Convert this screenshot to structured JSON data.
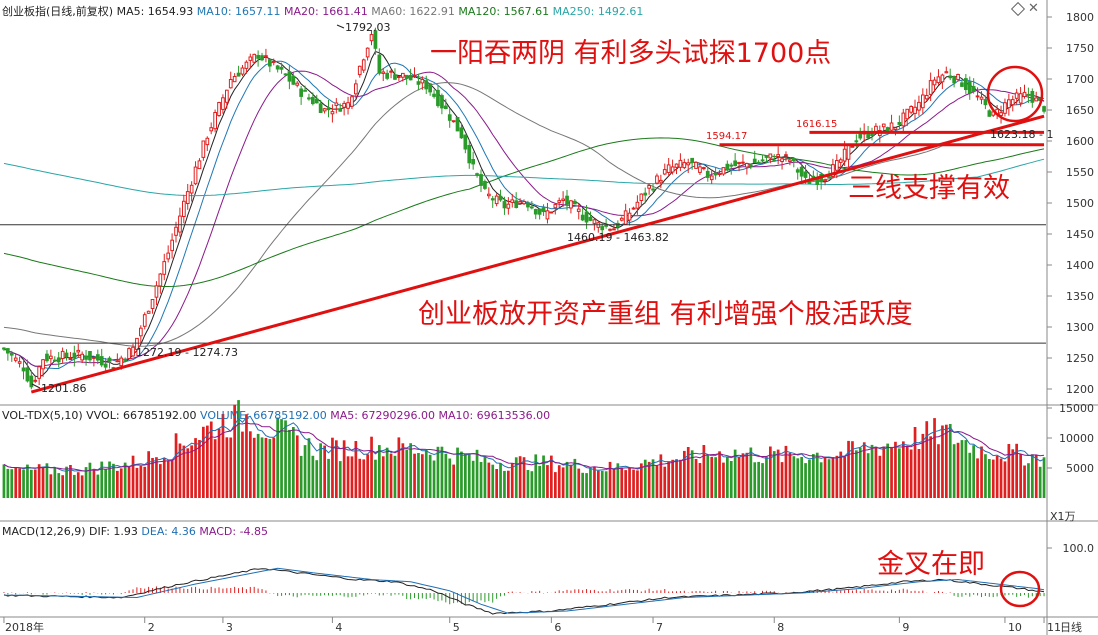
{
  "header": {
    "title": "创业板指(日线,前复权)",
    "ma": [
      {
        "label": "MA5: 1654.93",
        "color": "#222222"
      },
      {
        "label": "MA10: 1657.11",
        "color": "#1f77b4"
      },
      {
        "label": "MA20: 1661.41",
        "color": "#8b1a8b"
      },
      {
        "label": "MA60: 1622.91",
        "color": "#777777"
      },
      {
        "label": "MA120: 1567.61",
        "color": "#1a7a1a"
      },
      {
        "label": "MA250: 1492.61",
        "color": "#2aa6a6"
      }
    ]
  },
  "volume_header": [
    {
      "label": "VOL-TDX(5,10)",
      "color": "#222222"
    },
    {
      "label": "VVOL: 66785192.00",
      "color": "#222222"
    },
    {
      "label": "VOLUME: 66785192.00",
      "color": "#1f6fb4"
    },
    {
      "label": "MA5: 67290296.00",
      "color": "#8b1a8b"
    },
    {
      "label": "MA10: 69613536.00",
      "color": "#8b1a8b"
    }
  ],
  "macd_header": [
    {
      "label": "MACD(12,26,9)",
      "color": "#222222"
    },
    {
      "label": "DIF: 1.93",
      "color": "#222222"
    },
    {
      "label": "DEA: 4.36",
      "color": "#1f6fb4"
    },
    {
      "label": "MACD: -4.85",
      "color": "#8b1a8b"
    }
  ],
  "colors": {
    "up": "#e02020",
    "down": "#2a9a2a",
    "annotation": "#e01010",
    "trend": "#e01010"
  },
  "annotations": {
    "a1": "一阳吞两阴  有利多头试探1700点",
    "a2": "三线支撑有效",
    "a3": "创业板放开资产重组 有利增强个股活跃度",
    "a4": "金叉在即"
  },
  "price_labels": {
    "high": "1792.03",
    "low": "1201.86",
    "p1": "1272.19 - 1274.73",
    "p2": "1460.19 - 1463.82",
    "p3": "1616.15",
    "p4": "1594.17",
    "p5": "1623.18 - 1"
  },
  "period_label": "日线",
  "volume_unit": "X1万",
  "chart_data": {
    "type": "candlestick",
    "title": "创业板指(日线,前复权)",
    "y_ticks": [
      1200,
      1250,
      1300,
      1350,
      1400,
      1450,
      1500,
      1550,
      1600,
      1650,
      1700,
      1750,
      1800
    ],
    "volume_ticks": [
      5000,
      10000,
      15000
    ],
    "macd_ticks": [
      100.0
    ],
    "x_ticks": [
      "2018年",
      "2",
      "3",
      "4",
      "5",
      "6",
      "7",
      "8",
      "9",
      "10",
      "11"
    ],
    "price_anchors": [
      [
        0,
        1265
      ],
      [
        5,
        1235
      ],
      [
        7,
        1205
      ],
      [
        10,
        1250
      ],
      [
        20,
        1255
      ],
      [
        28,
        1240
      ],
      [
        33,
        1265
      ],
      [
        38,
        1350
      ],
      [
        42,
        1420
      ],
      [
        46,
        1500
      ],
      [
        52,
        1610
      ],
      [
        58,
        1700
      ],
      [
        65,
        1740
      ],
      [
        72,
        1705
      ],
      [
        76,
        1680
      ],
      [
        82,
        1650
      ],
      [
        88,
        1660
      ],
      [
        91,
        1720
      ],
      [
        94,
        1775
      ],
      [
        96,
        1710
      ],
      [
        102,
        1705
      ],
      [
        108,
        1690
      ],
      [
        113,
        1650
      ],
      [
        117,
        1610
      ],
      [
        120,
        1555
      ],
      [
        123,
        1515
      ],
      [
        128,
        1495
      ],
      [
        133,
        1505
      ],
      [
        138,
        1480
      ],
      [
        143,
        1505
      ],
      [
        148,
        1480
      ],
      [
        152,
        1465
      ],
      [
        156,
        1460
      ],
      [
        160,
        1485
      ],
      [
        165,
        1525
      ],
      [
        170,
        1555
      ],
      [
        175,
        1565
      ],
      [
        180,
        1545
      ],
      [
        186,
        1560
      ],
      [
        192,
        1565
      ],
      [
        197,
        1575
      ],
      [
        201,
        1570
      ],
      [
        205,
        1535
      ],
      [
        209,
        1540
      ],
      [
        213,
        1560
      ],
      [
        218,
        1605
      ],
      [
        222,
        1615
      ],
      [
        228,
        1625
      ],
      [
        234,
        1660
      ],
      [
        238,
        1700
      ],
      [
        241,
        1710
      ],
      [
        245,
        1695
      ],
      [
        249,
        1670
      ],
      [
        253,
        1640
      ],
      [
        257,
        1665
      ],
      [
        262,
        1675
      ],
      [
        266,
        1655
      ]
    ],
    "volume_anchors": [
      [
        0,
        4500
      ],
      [
        20,
        4800
      ],
      [
        35,
        6000
      ],
      [
        45,
        9000
      ],
      [
        55,
        12500
      ],
      [
        62,
        13500
      ],
      [
        70,
        11000
      ],
      [
        80,
        8000
      ],
      [
        95,
        8500
      ],
      [
        110,
        8000
      ],
      [
        125,
        6000
      ],
      [
        140,
        5800
      ],
      [
        155,
        5000
      ],
      [
        170,
        6500
      ],
      [
        185,
        7500
      ],
      [
        200,
        7000
      ],
      [
        215,
        7500
      ],
      [
        230,
        9500
      ],
      [
        240,
        11000
      ],
      [
        250,
        8000
      ],
      [
        266,
        6700
      ]
    ],
    "macd_anchors": [
      [
        0,
        -5
      ],
      [
        30,
        -10
      ],
      [
        45,
        20
      ],
      [
        60,
        45
      ],
      [
        66,
        55
      ],
      [
        75,
        45
      ],
      [
        90,
        30
      ],
      [
        100,
        25
      ],
      [
        110,
        5
      ],
      [
        118,
        -25
      ],
      [
        125,
        -45
      ],
      [
        140,
        -40
      ],
      [
        155,
        -25
      ],
      [
        170,
        -10
      ],
      [
        185,
        -5
      ],
      [
        200,
        0
      ],
      [
        215,
        10
      ],
      [
        230,
        25
      ],
      [
        240,
        30
      ],
      [
        250,
        20
      ],
      [
        260,
        10
      ],
      [
        266,
        2
      ]
    ],
    "ma_series": [
      {
        "name": "MA5",
        "color": "#222222",
        "window": 5
      },
      {
        "name": "MA10",
        "color": "#1f77b4",
        "window": 10
      },
      {
        "name": "MA20",
        "color": "#8b1a8b",
        "window": 20
      },
      {
        "name": "MA60",
        "color": "#777777",
        "window": 60
      },
      {
        "name": "MA120",
        "color": "#1a7a1a",
        "window": 120
      },
      {
        "name": "MA250",
        "color": "#2aa6a6",
        "window": 250
      }
    ],
    "trendline": [
      [
        7,
        1195
      ],
      [
        266,
        1640
      ]
    ],
    "support_lines": [
      {
        "from": 206,
        "to": 266,
        "y": 1614
      },
      {
        "from": 183,
        "to": 266,
        "y": 1594
      }
    ]
  }
}
